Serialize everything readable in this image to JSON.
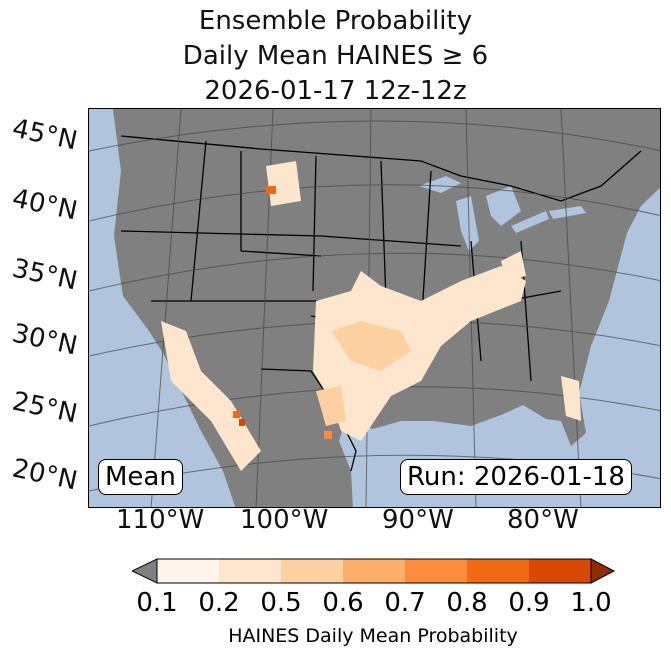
{
  "title": [
    "Ensemble Probability",
    "Daily Mean HAINES ≥ 6",
    "2026-01-17 12z-12z"
  ],
  "lat_labels": [
    "45°N",
    "40°N",
    "35°N",
    "30°N",
    "25°N",
    "20°N"
  ],
  "lon_labels": [
    "110°W",
    "100°W",
    "90°W",
    "80°W"
  ],
  "mean_label": "Mean",
  "run_label": "Run: 2026-01-18",
  "colorbar": {
    "ticks": [
      "0.1",
      "0.2",
      "0.5",
      "0.6",
      "0.7",
      "0.8",
      "0.9",
      "1.0"
    ],
    "label": "HAINES Daily Mean Probability",
    "colors": [
      "#fff5eb",
      "#fee6ce",
      "#fdd0a2",
      "#fdae6b",
      "#fd8d3c",
      "#f16913",
      "#d94801"
    ],
    "under": "#808080",
    "over": "#8c2d04"
  },
  "colors": {
    "ocean": "#b0c4de",
    "land": "#808080"
  }
}
